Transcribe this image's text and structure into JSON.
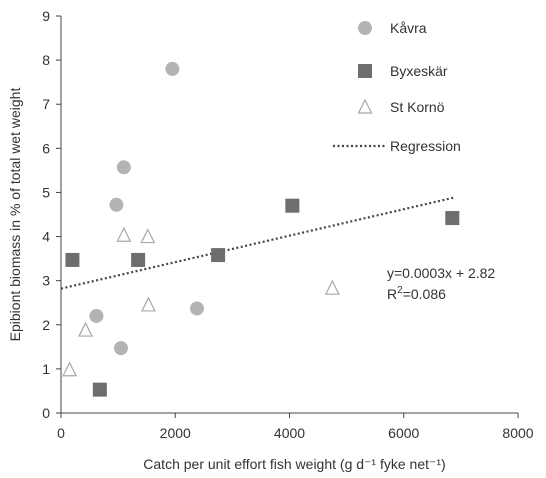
{
  "chart_data": {
    "type": "scatter",
    "xlabel": "Catch per unit effort fish weight (g d⁻¹ fyke net⁻¹)",
    "ylabel": "Epibiont biomass in % of total wet weight",
    "xlim": [
      0,
      8000
    ],
    "ylim": [
      0,
      9
    ],
    "x_ticks": [
      0,
      2000,
      4000,
      6000,
      8000
    ],
    "y_ticks": [
      0,
      1,
      2,
      3,
      4,
      5,
      6,
      7,
      8,
      9
    ],
    "grid": false,
    "legend_position": "top-right",
    "series": [
      {
        "name": "Kåvra",
        "marker": "circle",
        "color": "#b3b3b3",
        "points": [
          [
            1950,
            7.8
          ],
          [
            1100,
            5.57
          ],
          [
            970,
            4.72
          ],
          [
            620,
            2.2
          ],
          [
            1050,
            1.47
          ],
          [
            2380,
            2.37
          ]
        ]
      },
      {
        "name": "Byxeskär",
        "marker": "square",
        "color": "#6e6e6e",
        "points": [
          [
            200,
            3.47
          ],
          [
            1350,
            3.47
          ],
          [
            2750,
            3.58
          ],
          [
            4050,
            4.7
          ],
          [
            6850,
            4.42
          ],
          [
            680,
            0.53
          ]
        ]
      },
      {
        "name": "St Kornö",
        "marker": "triangle",
        "color": "#a8a8a8",
        "points": [
          [
            1100,
            4.03
          ],
          [
            1520,
            4.0
          ],
          [
            1530,
            2.45
          ],
          [
            430,
            1.88
          ],
          [
            150,
            0.98
          ],
          [
            4750,
            2.83
          ]
        ]
      }
    ],
    "regression": {
      "name": "Regression",
      "slope": 0.0003,
      "intercept": 2.82,
      "x_range": [
        0,
        6900
      ],
      "style": "dotted",
      "color": "#444444"
    },
    "annotations": {
      "equation": "y=0.0003x + 2.82",
      "r2_prefix": "R",
      "r2_exp": "2",
      "r2_value": "=0.086"
    }
  }
}
